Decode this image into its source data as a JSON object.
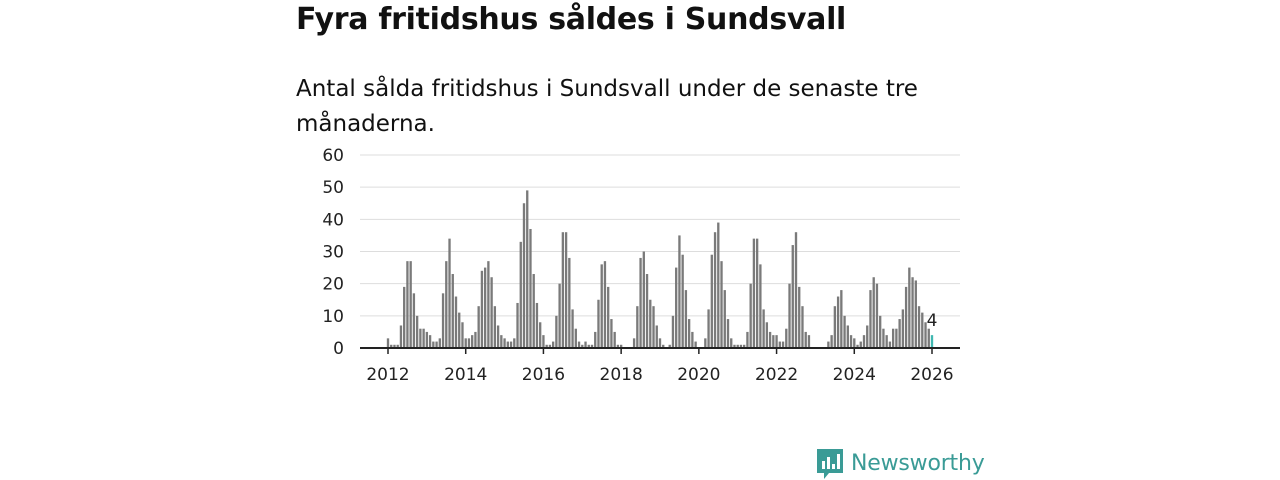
{
  "header": {
    "title": "Fyra fritidshus såldes i Sundsvall",
    "subtitle": "Antal sålda fritidshus i Sundsvall under de senaste tre månaderna."
  },
  "brand": {
    "name": "Newsworthy",
    "icon": "newsworthy-logo-icon"
  },
  "colors": {
    "bar": "#7a7a7a",
    "highlight": "#3fb7b0",
    "brand": "#3a9b96",
    "grid": "#dddddd",
    "axis": "#222222"
  },
  "chart_data": {
    "type": "bar",
    "title": "Antal sålda fritidshus i Sundsvall under de senaste tre månaderna.",
    "xlabel": "",
    "ylabel": "",
    "ylim": [
      0,
      60
    ],
    "yticks": [
      "0",
      "10",
      "20",
      "30",
      "40",
      "50",
      "60"
    ],
    "xticks": [
      {
        "year": 2012,
        "label": "2012"
      },
      {
        "year": 2014,
        "label": "2014"
      },
      {
        "year": 2016,
        "label": "2016"
      },
      {
        "year": 2018,
        "label": "2018"
      },
      {
        "year": 2020,
        "label": "2020"
      },
      {
        "year": 2022,
        "label": "2022"
      },
      {
        "year": 2024,
        "label": "2024"
      },
      {
        "year": 2026,
        "label": "2026"
      }
    ],
    "start": "2012-01",
    "frequency": "monthly",
    "grid": true,
    "highlight": {
      "index": 168,
      "label": "4",
      "value": 4
    },
    "values": [
      3,
      1,
      1,
      1,
      7,
      19,
      27,
      27,
      17,
      10,
      6,
      6,
      5,
      4,
      2,
      2,
      3,
      17,
      27,
      34,
      23,
      16,
      11,
      8,
      3,
      3,
      4,
      5,
      13,
      24,
      25,
      27,
      22,
      13,
      7,
      4,
      3,
      2,
      2,
      3,
      14,
      33,
      45,
      49,
      37,
      23,
      14,
      8,
      4,
      1,
      1,
      2,
      10,
      20,
      36,
      36,
      28,
      12,
      6,
      2,
      1,
      2,
      1,
      1,
      5,
      15,
      26,
      27,
      19,
      9,
      5,
      1,
      1,
      0,
      0,
      0,
      3,
      13,
      28,
      30,
      23,
      15,
      13,
      7,
      3,
      1,
      0,
      1,
      10,
      25,
      35,
      29,
      18,
      9,
      5,
      2,
      0,
      0,
      3,
      12,
      29,
      36,
      39,
      27,
      18,
      9,
      3,
      1,
      1,
      1,
      1,
      5,
      20,
      34,
      34,
      26,
      12,
      8,
      5,
      4,
      4,
      2,
      2,
      6,
      20,
      32,
      36,
      19,
      13,
      5,
      4,
      0,
      0,
      0,
      0,
      0,
      2,
      4,
      13,
      16,
      18,
      10,
      7,
      4,
      3,
      1,
      2,
      4,
      7,
      18,
      22,
      20,
      10,
      6,
      4,
      2,
      6,
      6,
      9,
      12,
      19,
      25,
      22,
      21,
      13,
      11,
      8,
      6,
      4
    ]
  }
}
